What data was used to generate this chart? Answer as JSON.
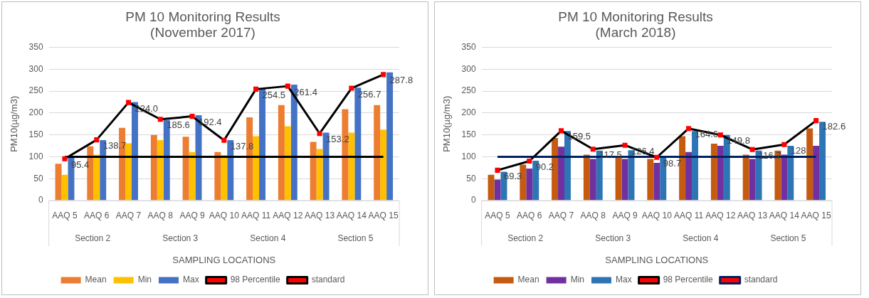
{
  "chart_data": [
    {
      "type": "bar",
      "title": "PM 10 Monitoring Results",
      "subtitle": "(November 2017)",
      "xlabel": "SAMPLING LOCATIONS",
      "ylabel": "PM10(µg/m3)",
      "categories": [
        "AAQ 5",
        "AAQ 6",
        "AAQ 7",
        "AAQ 8",
        "AAQ 9",
        "AAQ 10",
        "AAQ 11",
        "AAQ 12",
        "AAQ 13",
        "AAQ 14",
        "AAQ 15"
      ],
      "ylim": [
        0,
        350
      ],
      "yticks": [
        0,
        50,
        100,
        150,
        200,
        250,
        300,
        350
      ],
      "grid": "y",
      "legend": "bottom",
      "annotations": [
        "Section 2",
        "Section 3",
        "Section 4",
        "Section 5"
      ],
      "series": [
        {
          "name": "Mean",
          "color": "#ed7d31",
          "values": [
            84,
            124,
            166,
            150,
            146,
            111,
            190,
            218,
            134,
            209,
            218
          ]
        },
        {
          "name": "Min",
          "color": "#ffc000",
          "values": [
            59,
            105,
            131,
            138,
            111,
            104,
            147,
            170,
            118,
            155,
            162
          ]
        },
        {
          "name": "Max",
          "color": "#4472c4",
          "values": [
            98,
            138,
            225,
            184,
            195,
            138,
            255,
            265,
            155,
            258,
            293
          ]
        },
        {
          "name": "98 Percentile",
          "type": "line",
          "color": "#000000",
          "marker": "square",
          "values": [
            95.4,
            138.7,
            224.0,
            185.6,
            192.4,
            137.8,
            254.5,
            261.4,
            153.2,
            256.7,
            287.8
          ],
          "value_labels": [
            "95.4",
            "138.7",
            "224.0",
            "185.6",
            "192.4",
            "137.8",
            "254.5",
            "261.4",
            "153.2",
            "256.7",
            "287.8"
          ]
        },
        {
          "name": "standard",
          "type": "line",
          "color": "#000000",
          "marker": "none",
          "values": [
            100,
            100,
            100,
            100,
            100,
            100,
            100,
            100,
            100,
            100,
            100
          ]
        }
      ]
    },
    {
      "type": "bar",
      "title": "PM 10 Monitoring Results",
      "subtitle": "(March 2018)",
      "xlabel": "SAMPLING LOCATIONS",
      "ylabel": "PM10(µg/m3)",
      "categories": [
        "AAQ 5",
        "AAQ 6",
        "AAQ 7",
        "AAQ 8",
        "AAQ 9",
        "AAQ 10",
        "AAQ 11",
        "AAQ 12",
        "AAQ 13",
        "AAQ 14",
        "AAQ 15"
      ],
      "ylim": [
        0,
        350
      ],
      "yticks": [
        0,
        50,
        100,
        150,
        200,
        250,
        300,
        350
      ],
      "grid": "y",
      "legend": "bottom",
      "annotations": [
        "Section 2",
        "Section 3",
        "Section 4",
        "Section 5"
      ],
      "series": [
        {
          "name": "Mean",
          "color": "#c55a11",
          "values": [
            59,
            82,
            143,
            105,
            100,
            95,
            147,
            130,
            105,
            114,
            165
          ]
        },
        {
          "name": "Min",
          "color": "#7030a0",
          "values": [
            48,
            73,
            123,
            95,
            95,
            86,
            111,
            125,
            95,
            105,
            125
          ]
        },
        {
          "name": "Max",
          "color": "#2e75b6",
          "values": [
            66,
            91,
            159,
            114,
            115,
            100,
            159,
            150,
            114,
            125,
            180
          ]
        },
        {
          "name": "98 Percentile",
          "type": "line",
          "color": "#000000",
          "marker": "square",
          "values": [
            69.3,
            90.2,
            159.5,
            117.5,
            126.4,
            98.7,
            164.6,
            149.8,
            116.7,
            128,
            182.6
          ],
          "value_labels": [
            "69.3",
            "90.2",
            "159.5",
            "117.5",
            "126.4",
            "98.7",
            "164.6",
            "149.8",
            "116.7",
            "128",
            "182.6"
          ]
        },
        {
          "name": "standard",
          "type": "line",
          "color": "#002060",
          "marker": "none",
          "values": [
            100,
            100,
            100,
            100,
            100,
            100,
            100,
            100,
            100,
            100,
            100
          ]
        }
      ]
    }
  ]
}
